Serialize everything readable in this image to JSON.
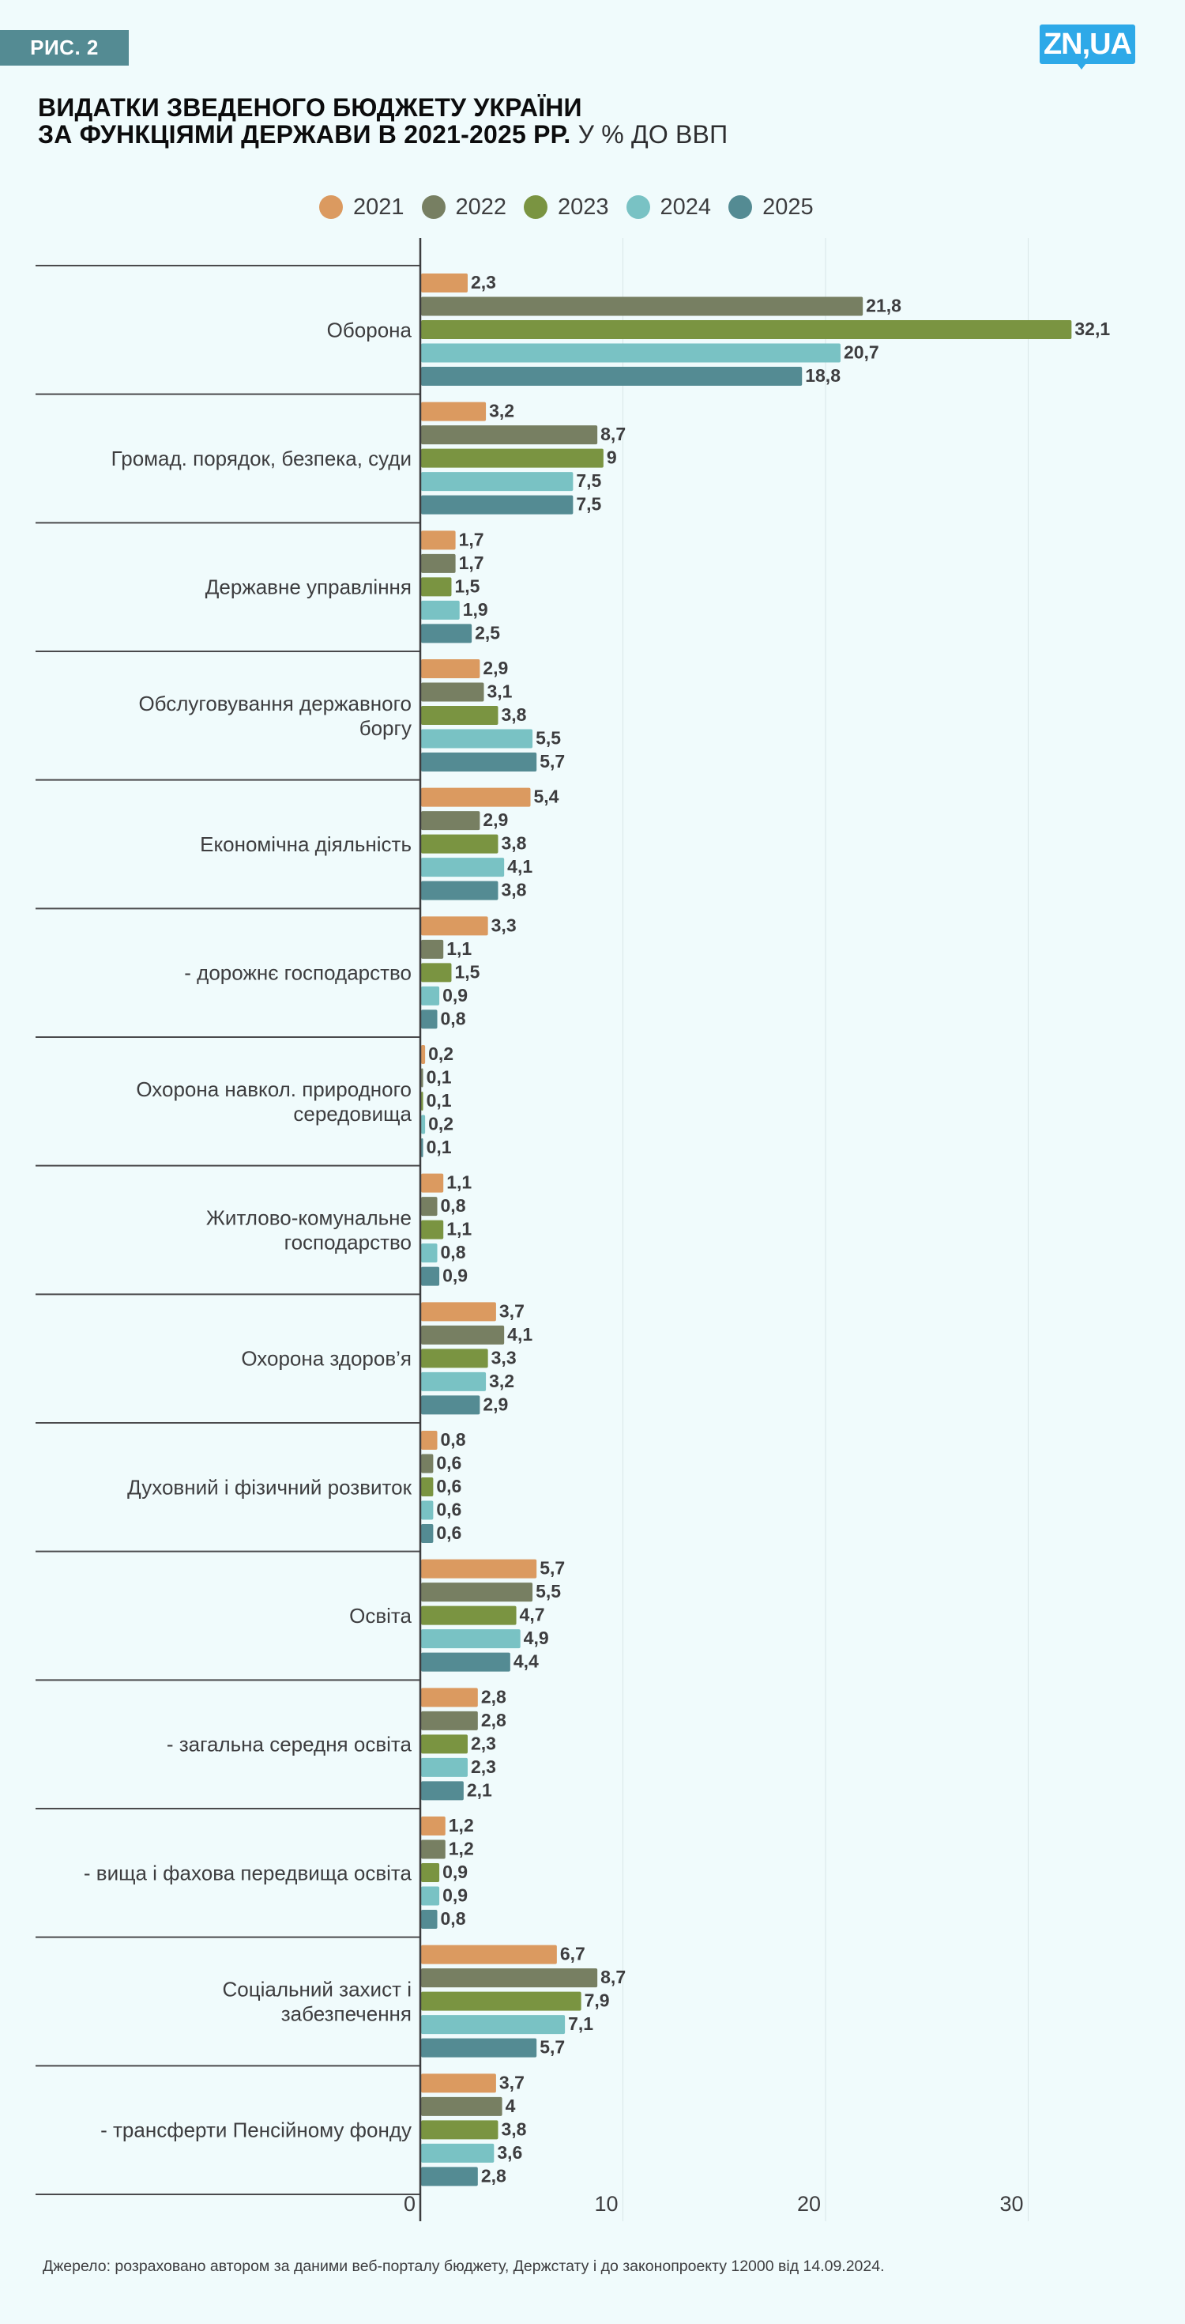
{
  "figure_label": "РИС. 2",
  "logo_text": "ZN,UA",
  "title": {
    "bold_line1": "ВИДАТКИ ЗВЕДЕНОГО БЮДЖЕТУ УКРАЇНИ",
    "bold_line2": "ЗА ФУНКЦІЯМИ ДЕРЖАВИ В 2021-2025 РР.",
    "light_suffix": " У % ДО ВВП"
  },
  "source": "Джерело: розраховано автором за даними веб-порталу бюджету, Держстату і до законопроекту 12000 від 14.09.2024.",
  "chart_data": {
    "type": "bar",
    "orientation": "horizontal",
    "title": "ВИДАТКИ ЗВЕДЕНОГО БЮДЖЕТУ УКРАЇНИ ЗА ФУНКЦІЯМИ ДЕРЖАВИ В 2021-2025 РР. У % ДО ВВП",
    "xlabel": "",
    "ylabel": "",
    "xlim": [
      0,
      35
    ],
    "xticks": [
      0,
      10,
      20,
      30
    ],
    "tick_labels": [
      "0",
      "10",
      "20",
      "30"
    ],
    "grid": "vertical",
    "legend_position": "top-center",
    "categories": [
      [
        "Оборона"
      ],
      [
        "Громад. порядок, безпека, суди"
      ],
      [
        "Державне управління"
      ],
      [
        "Обслуговування державного",
        "боргу"
      ],
      [
        "Економічна діяльність"
      ],
      [
        "- дорожнє господарство"
      ],
      [
        "Охорона навкол. природного",
        "середовища"
      ],
      [
        "Житлово-комунальне",
        "господарство"
      ],
      [
        "Охорона здоров’я"
      ],
      [
        "Духовний і фізичний розвиток"
      ],
      [
        "Освіта"
      ],
      [
        "- загальна середня освіта"
      ],
      [
        "- вища і фахова передвища освіта"
      ],
      [
        "Соціальний захист і",
        "забезпечення"
      ],
      [
        "- трансферти Пенсійному фонду"
      ]
    ],
    "series": [
      {
        "name": "2021",
        "color": "#db9a60",
        "values": [
          2.3,
          3.2,
          1.7,
          2.9,
          5.4,
          3.3,
          0.2,
          1.1,
          3.7,
          0.8,
          5.7,
          2.8,
          1.2,
          6.7,
          3.7
        ]
      },
      {
        "name": "2022",
        "color": "#777f62",
        "values": [
          21.8,
          8.7,
          1.7,
          3.1,
          2.9,
          1.1,
          0.1,
          0.8,
          4.1,
          0.6,
          5.5,
          2.8,
          1.2,
          8.7,
          4
        ]
      },
      {
        "name": "2023",
        "color": "#7a9441",
        "values": [
          32.1,
          9,
          1.5,
          3.8,
          3.8,
          1.5,
          0.1,
          1.1,
          3.3,
          0.6,
          4.7,
          2.3,
          0.9,
          7.9,
          3.8
        ]
      },
      {
        "name": "2024",
        "color": "#79c2c4",
        "values": [
          20.7,
          7.5,
          1.9,
          5.5,
          4.1,
          0.9,
          0.2,
          0.8,
          3.2,
          0.6,
          4.9,
          2.3,
          0.9,
          7.1,
          3.6
        ]
      },
      {
        "name": "2025",
        "color": "#548b93",
        "values": [
          18.8,
          7.5,
          2.5,
          5.7,
          3.8,
          0.8,
          0.1,
          0.9,
          2.9,
          0.6,
          4.4,
          2.1,
          0.8,
          5.7,
          2.8
        ]
      }
    ],
    "value_labels": [
      [
        "2,3",
        "3,2",
        "1,7",
        "2,9",
        "5,4",
        "3,3",
        "0,2",
        "1,1",
        "3,7",
        "0,8",
        "5,7",
        "2,8",
        "1,2",
        "6,7",
        "3,7"
      ],
      [
        "21,8",
        "8,7",
        "1,7",
        "3,1",
        "2,9",
        "1,1",
        "0,1",
        "0,8",
        "4,1",
        "0,6",
        "5,5",
        "2,8",
        "1,2",
        "8,7",
        "4"
      ],
      [
        "32,1",
        "9",
        "1,5",
        "3,8",
        "3,8",
        "1,5",
        "0,1",
        "1,1",
        "3,3",
        "0,6",
        "4,7",
        "2,3",
        "0,9",
        "7,9",
        "3,8"
      ],
      [
        "20,7",
        "7,5",
        "1,9",
        "5,5",
        "4,1",
        "0,9",
        "0,2",
        "0,8",
        "3,2",
        "0,6",
        "4,9",
        "2,3",
        "0,9",
        "7,1",
        "3,6"
      ],
      [
        "18,8",
        "7,5",
        "2,5",
        "5,7",
        "3,8",
        "0,8",
        "0,1",
        "0,9",
        "2,9",
        "0,6",
        "4,4",
        "2,1",
        "0,8",
        "5,7",
        "2,8"
      ]
    ]
  }
}
